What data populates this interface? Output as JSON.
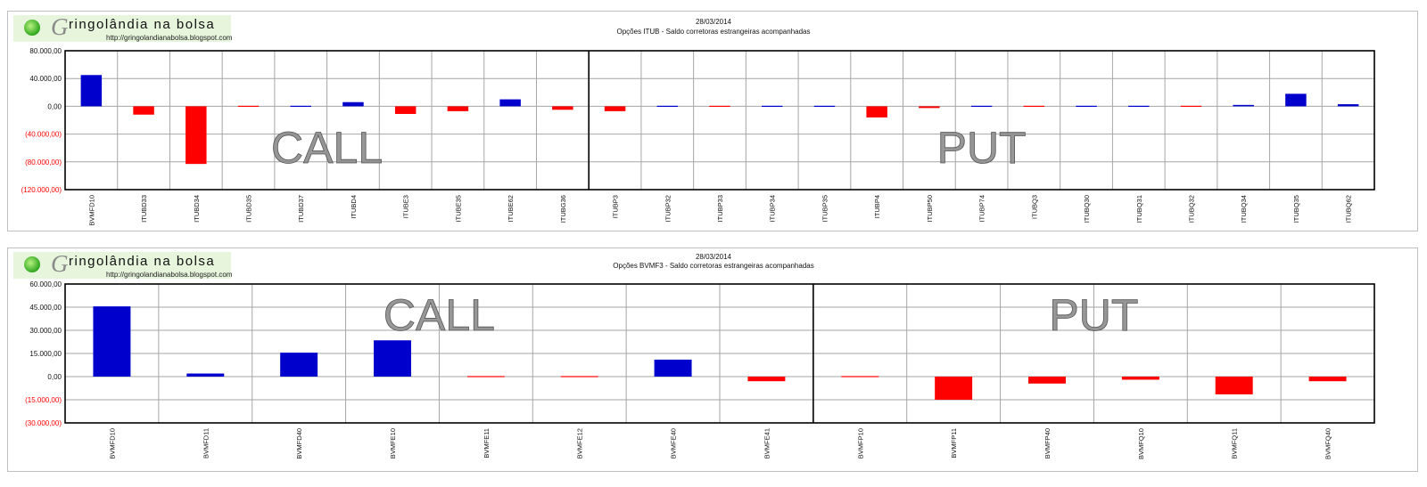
{
  "logo": {
    "name": "ringolândia na bolsa",
    "url": "http://gringolandianabolsa.blogspot.com"
  },
  "colors": {
    "positive": "#0000cc",
    "negative": "#ff0000",
    "negative_label": "#ff0000",
    "grid": "#a6a6a6"
  },
  "charts": [
    {
      "date": "28/03/2014",
      "title": "Opções  ITUB  - Saldo corretoras estrangeiras acompanhadas",
      "call_label": "CALL",
      "put_label": "PUT",
      "ticks": [
        "80.000,00",
        "40.000,00",
        "0,00",
        "(40.000,00)",
        "(80.000,00)",
        "(120.000,00)"
      ]
    },
    {
      "date": "28/03/2014",
      "title": "Opções  BVMF3 - Saldo corretoras estrangeiras acompanhadas",
      "call_label": "CALL",
      "put_label": "PUT",
      "ticks": [
        "60.000,00",
        "45.000,00",
        "30.000,00",
        "15.000,00",
        "0,00",
        "(15.000,00)",
        "(30.000,00)"
      ]
    }
  ],
  "chart_data": [
    {
      "type": "bar",
      "title": "Opções  ITUB  - Saldo corretoras estrangeiras acompanhadas",
      "ylim": [
        -120000,
        80000
      ],
      "grid": true,
      "split_after_index": 9,
      "categories": [
        "BVMFD10",
        "ITUBD33",
        "ITUBD34",
        "ITUBD35",
        "ITUBD37",
        "ITUBD4",
        "ITUBE3",
        "ITUBE35",
        "ITUBE62",
        "ITUBG36",
        "ITUBP3",
        "ITUBP32",
        "ITUBP33",
        "ITUBP34",
        "ITUBP35",
        "ITUBP4",
        "ITUBP50",
        "ITUBP74",
        "ITUBQ3",
        "ITUBQ30",
        "ITUBQ31",
        "ITUBQ32",
        "ITUBQ34",
        "ITUBQ35",
        "ITUBQ62"
      ],
      "values": [
        45000,
        -12000,
        -83000,
        -1200,
        0,
        6000,
        -11000,
        -7000,
        10000,
        -5000,
        -7000,
        0,
        -1000,
        1000,
        1000,
        -16000,
        -2500,
        1000,
        -1500,
        1000,
        1000,
        -1500,
        2000,
        18000,
        3000
      ]
    },
    {
      "type": "bar",
      "title": "Opções  BVMF3 - Saldo corretoras estrangeiras acompanhadas",
      "ylim": [
        -30000,
        60000
      ],
      "grid": true,
      "split_after_index": 7,
      "categories": [
        "BVMFD10",
        "BVMFD11",
        "BVMFD40",
        "BVMFE10",
        "BVMFE11",
        "BVMFE12",
        "BVMFE40",
        "BVMFE41",
        "BVMFP10",
        "BVMFP11",
        "BVMFP40",
        "BVMFQ10",
        "BVMFQ11",
        "BVMFQ40"
      ],
      "values": [
        45500,
        2000,
        15500,
        23500,
        -500,
        -500,
        11000,
        -3000,
        -500,
        -15000,
        -4500,
        -2000,
        -11500,
        -3000
      ]
    }
  ]
}
